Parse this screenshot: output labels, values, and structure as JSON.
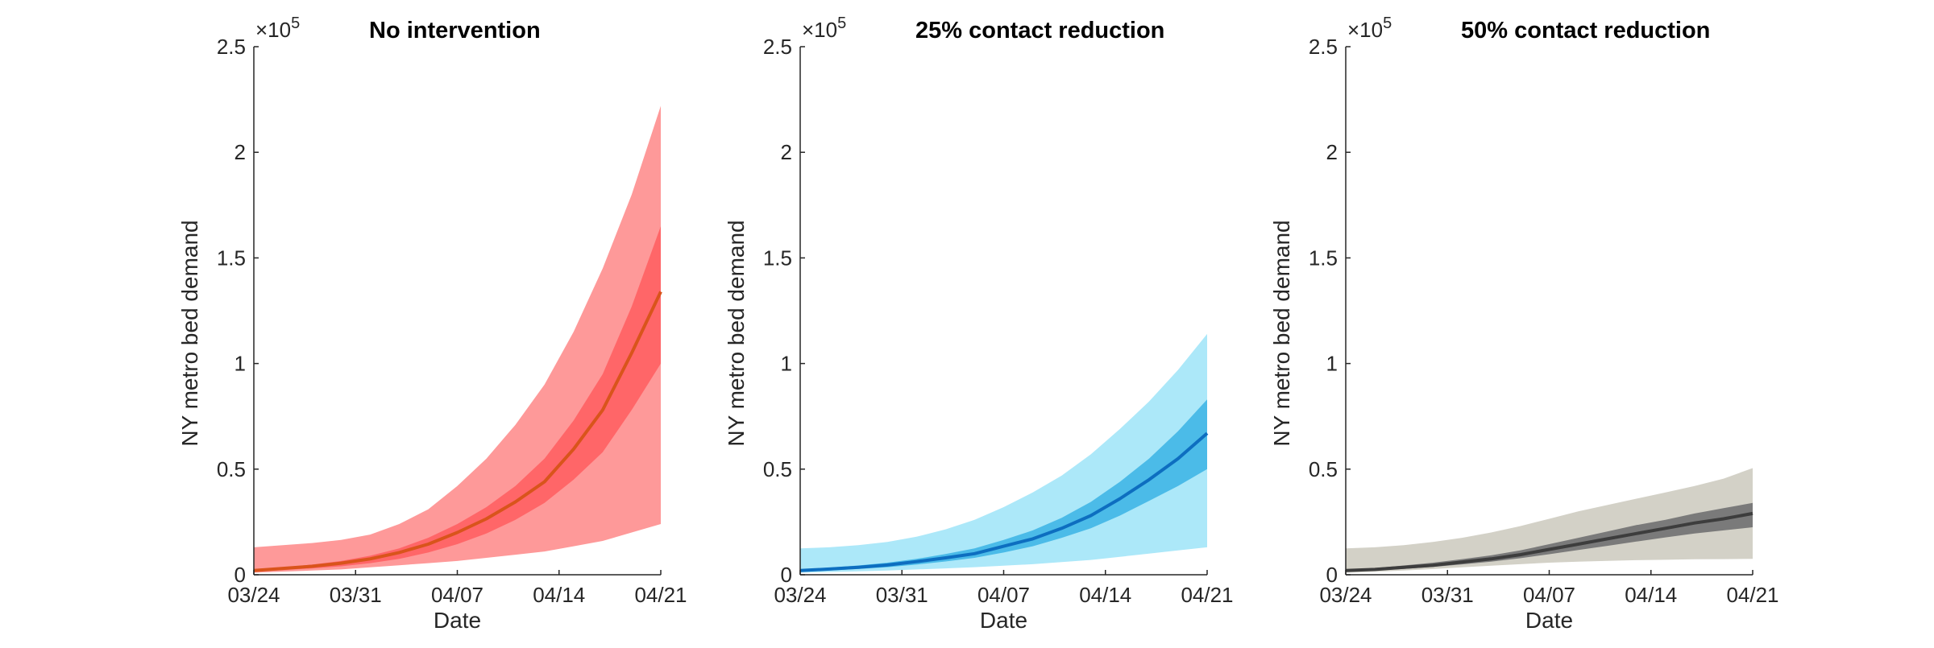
{
  "chart_data": [
    {
      "type": "area",
      "title": "No intervention",
      "xlabel": "Date",
      "ylabel": "NY metro bed demand",
      "y_multiplier": "×10",
      "y_exponent": "5",
      "x_ticks": [
        "03/24",
        "03/31",
        "04/07",
        "04/14",
        "04/21"
      ],
      "y_ticks": [
        "0",
        "0.5",
        "1",
        "1.5",
        "2",
        "2.5"
      ],
      "xlim_days": [
        0,
        28
      ],
      "ylim": [
        0,
        2.5
      ],
      "colors": {
        "outer": "#fe9999",
        "inner": "#ff6668",
        "median": "#d9541b"
      },
      "x": [
        0,
        2,
        4,
        6,
        8,
        10,
        12,
        14,
        16,
        18,
        20,
        22,
        24,
        26,
        28
      ],
      "median": [
        0.02,
        0.03,
        0.04,
        0.055,
        0.075,
        0.105,
        0.145,
        0.2,
        0.265,
        0.345,
        0.44,
        0.595,
        0.78,
        1.05,
        1.34
      ],
      "inner_lower": [
        0.015,
        0.022,
        0.03,
        0.04,
        0.055,
        0.075,
        0.105,
        0.145,
        0.195,
        0.26,
        0.34,
        0.45,
        0.58,
        0.78,
        1.0
      ],
      "inner_upper": [
        0.025,
        0.035,
        0.048,
        0.065,
        0.09,
        0.125,
        0.175,
        0.24,
        0.32,
        0.42,
        0.55,
        0.73,
        0.95,
        1.27,
        1.65
      ],
      "outer_lower": [
        0.01,
        0.015,
        0.02,
        0.025,
        0.035,
        0.045,
        0.055,
        0.065,
        0.08,
        0.095,
        0.11,
        0.135,
        0.16,
        0.2,
        0.24
      ],
      "outer_upper": [
        0.13,
        0.14,
        0.15,
        0.165,
        0.19,
        0.24,
        0.31,
        0.42,
        0.55,
        0.71,
        0.9,
        1.15,
        1.45,
        1.8,
        2.22
      ]
    },
    {
      "type": "area",
      "title": "25% contact reduction",
      "xlabel": "Date",
      "ylabel": "NY metro bed demand",
      "y_multiplier": "×10",
      "y_exponent": "5",
      "x_ticks": [
        "03/24",
        "03/31",
        "04/07",
        "04/14",
        "04/21"
      ],
      "y_ticks": [
        "0",
        "0.5",
        "1",
        "1.5",
        "2",
        "2.5"
      ],
      "xlim_days": [
        0,
        28
      ],
      "ylim": [
        0,
        2.5
      ],
      "colors": {
        "outer": "#ace8f9",
        "inner": "#4bbbe8",
        "median": "#0d6ec0"
      },
      "x": [
        0,
        2,
        4,
        6,
        8,
        10,
        12,
        14,
        16,
        18,
        20,
        22,
        24,
        26,
        28
      ],
      "median": [
        0.02,
        0.027,
        0.035,
        0.046,
        0.062,
        0.08,
        0.1,
        0.135,
        0.17,
        0.22,
        0.28,
        0.36,
        0.45,
        0.55,
        0.67
      ],
      "inner_lower": [
        0.015,
        0.02,
        0.027,
        0.036,
        0.048,
        0.063,
        0.08,
        0.105,
        0.135,
        0.175,
        0.22,
        0.28,
        0.35,
        0.42,
        0.5
      ],
      "inner_upper": [
        0.025,
        0.034,
        0.044,
        0.057,
        0.075,
        0.098,
        0.125,
        0.165,
        0.21,
        0.27,
        0.345,
        0.44,
        0.55,
        0.68,
        0.83
      ],
      "outer_lower": [
        0.01,
        0.013,
        0.016,
        0.02,
        0.025,
        0.03,
        0.036,
        0.043,
        0.05,
        0.06,
        0.07,
        0.085,
        0.1,
        0.115,
        0.13
      ],
      "outer_upper": [
        0.125,
        0.13,
        0.14,
        0.155,
        0.18,
        0.215,
        0.26,
        0.32,
        0.39,
        0.47,
        0.57,
        0.69,
        0.82,
        0.97,
        1.14
      ]
    },
    {
      "type": "area",
      "title": "50% contact reduction",
      "xlabel": "Date",
      "ylabel": "NY metro bed demand",
      "y_multiplier": "×10",
      "y_exponent": "5",
      "x_ticks": [
        "03/24",
        "03/31",
        "04/07",
        "04/14",
        "04/21"
      ],
      "y_ticks": [
        "0",
        "0.5",
        "1",
        "1.5",
        "2",
        "2.5"
      ],
      "xlim_days": [
        0,
        28
      ],
      "ylim": [
        0,
        2.5
      ],
      "colors": {
        "outer": "#d3d1c7",
        "inner": "#7a7a7a",
        "median": "#3d3d3d"
      },
      "x": [
        0,
        2,
        4,
        6,
        8,
        10,
        12,
        14,
        16,
        18,
        20,
        22,
        24,
        26,
        28
      ],
      "median": [
        0.02,
        0.025,
        0.035,
        0.045,
        0.06,
        0.075,
        0.095,
        0.12,
        0.145,
        0.17,
        0.195,
        0.22,
        0.245,
        0.265,
        0.29
      ],
      "inner_lower": [
        0.015,
        0.02,
        0.028,
        0.037,
        0.049,
        0.062,
        0.078,
        0.097,
        0.117,
        0.137,
        0.157,
        0.177,
        0.195,
        0.21,
        0.225
      ],
      "inner_upper": [
        0.025,
        0.032,
        0.044,
        0.057,
        0.074,
        0.092,
        0.115,
        0.145,
        0.175,
        0.205,
        0.235,
        0.26,
        0.29,
        0.315,
        0.34
      ],
      "outer_lower": [
        0.01,
        0.014,
        0.02,
        0.027,
        0.035,
        0.043,
        0.05,
        0.057,
        0.062,
        0.066,
        0.069,
        0.071,
        0.073,
        0.074,
        0.075
      ],
      "outer_upper": [
        0.125,
        0.13,
        0.14,
        0.155,
        0.175,
        0.2,
        0.23,
        0.265,
        0.3,
        0.33,
        0.36,
        0.39,
        0.42,
        0.455,
        0.505
      ]
    }
  ]
}
